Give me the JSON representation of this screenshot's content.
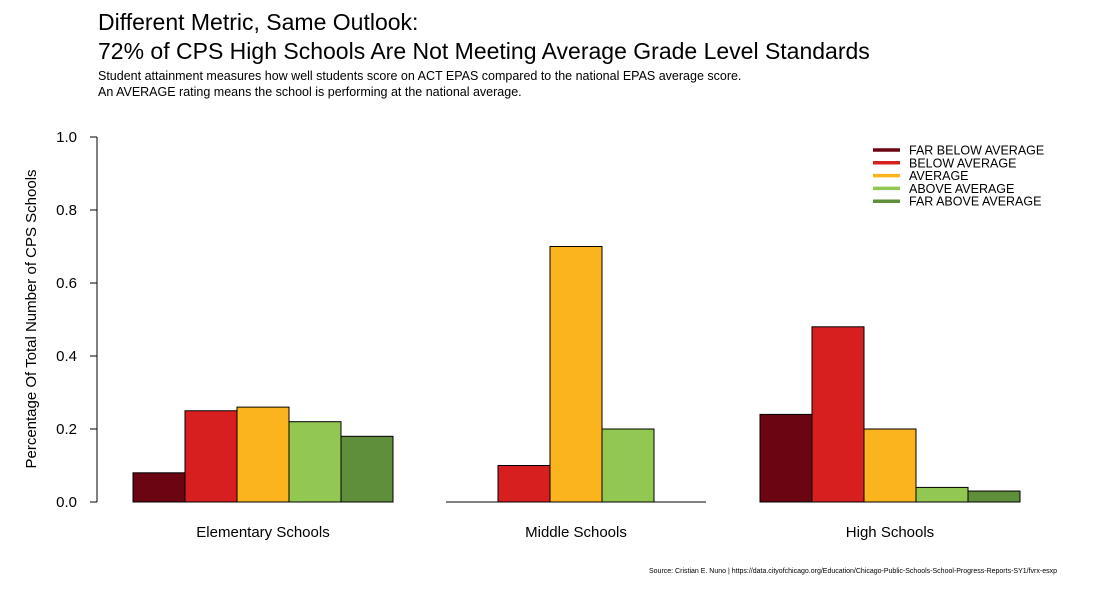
{
  "chart_data": {
    "type": "bar",
    "title": "Different Metric, Same Outlook:\n72% of CPS High Schools Are Not Meeting Average Grade Level Standards",
    "title_lines": [
      "Different Metric, Same Outlook:",
      "72% of CPS High Schools Are Not Meeting Average Grade Level Standards"
    ],
    "subtitle_lines": [
      "Student attainment measures how well students score on ACT EPAS compared to the national EPAS average score.",
      "An AVERAGE rating means the school is performing at the national average."
    ],
    "ylabel": "Percentage Of Total Number of CPS Schools",
    "xlabel": "",
    "ylim": [
      0,
      1
    ],
    "yticks": [
      "0.0",
      "0.2",
      "0.4",
      "0.6",
      "0.8",
      "1.0"
    ],
    "categories": [
      "Elementary Schools",
      "Middle Schools",
      "High Schools"
    ],
    "series": [
      {
        "name": "FAR BELOW AVERAGE",
        "color": "#6b0512",
        "values": [
          0.08,
          0.0,
          0.24
        ]
      },
      {
        "name": "BELOW AVERAGE",
        "color": "#d81f1f",
        "values": [
          0.25,
          0.1,
          0.48
        ]
      },
      {
        "name": "AVERAGE",
        "color": "#fbb41e",
        "values": [
          0.26,
          0.7,
          0.2
        ]
      },
      {
        "name": "ABOVE AVERAGE",
        "color": "#92c852",
        "values": [
          0.22,
          0.2,
          0.04
        ]
      },
      {
        "name": "FAR ABOVE AVERAGE",
        "color": "#5f8f3b",
        "values": [
          0.18,
          0.0,
          0.03
        ]
      }
    ],
    "legend_position": "top-right",
    "grid": false,
    "source": "Source: Cristian E. Nuno | https://data.cityofchicago.org/Education/Chicago-Public-Schools-School-Progress-Reports-SY1/fvrx-esxp"
  }
}
